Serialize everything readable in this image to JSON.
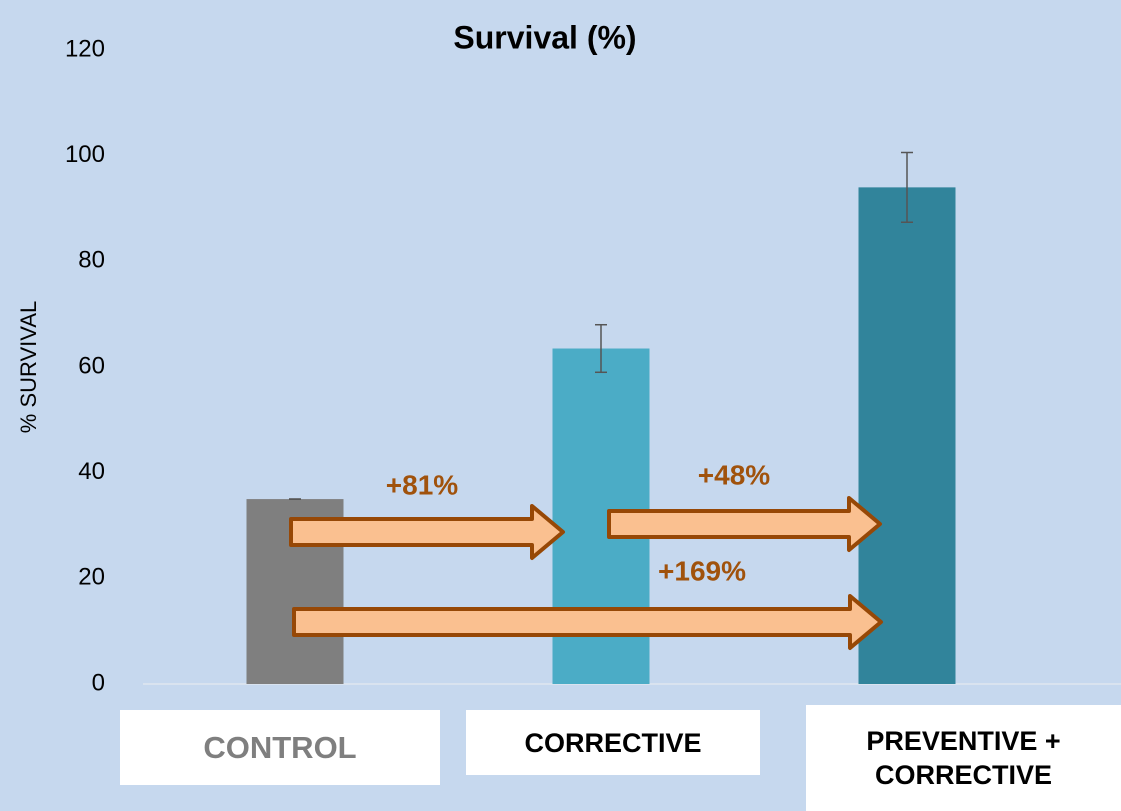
{
  "chart_data": {
    "type": "bar",
    "title": "Survival (%)",
    "y_label": "% SURVIVAL",
    "categories": [
      "CONTROL",
      "CORRECTIVE",
      "PREVENTIVE + CORRECTIVE"
    ],
    "values": [
      35,
      63.5,
      94
    ],
    "errors": [
      0,
      4.5,
      6.6
    ],
    "colors": [
      "#7f7f7f",
      "#4bacc6",
      "#31849b"
    ],
    "category_label_colors": [
      "#7f7f7f",
      "#000000",
      "#000000"
    ],
    "ylim": [
      0,
      120
    ],
    "yticks": [
      0,
      20,
      40,
      60,
      80,
      100,
      120
    ],
    "grid": false,
    "annotations": [
      "+81%",
      "+48%",
      "+169%"
    ]
  }
}
